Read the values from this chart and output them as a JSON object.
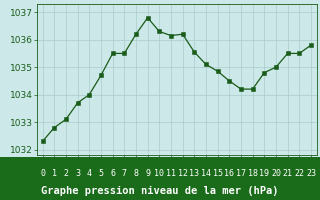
{
  "x": [
    0,
    1,
    2,
    3,
    4,
    5,
    6,
    7,
    8,
    9,
    10,
    11,
    12,
    13,
    14,
    15,
    16,
    17,
    18,
    19,
    20,
    21,
    22,
    23
  ],
  "y": [
    1032.3,
    1032.8,
    1033.1,
    1033.7,
    1034.0,
    1034.7,
    1035.5,
    1035.5,
    1036.2,
    1036.8,
    1036.3,
    1036.15,
    1036.2,
    1035.55,
    1035.1,
    1034.85,
    1034.5,
    1034.2,
    1034.2,
    1034.8,
    1035.0,
    1035.5,
    1035.5,
    1035.8
  ],
  "line_color": "#1a5c1a",
  "marker": "s",
  "marker_size": 2.5,
  "bg_color": "#cce8e8",
  "grid_color": "#aacccc",
  "xlim": [
    -0.5,
    23.5
  ],
  "ylim": [
    1031.8,
    1037.3
  ],
  "yticks": [
    1032,
    1033,
    1034,
    1035,
    1036,
    1037
  ],
  "xtick_labels": [
    "0",
    "1",
    "2",
    "3",
    "4",
    "5",
    "6",
    "7",
    "8",
    "9",
    "10",
    "11",
    "12",
    "13",
    "14",
    "15",
    "16",
    "17",
    "18",
    "19",
    "20",
    "21",
    "22",
    "23"
  ],
  "xlabel": "Graphe pression niveau de la mer (hPa)",
  "xlabel_fontsize": 7.5,
  "tick_fontsize": 6,
  "ytick_fontsize": 6.5,
  "spine_color": "#1a5c1a",
  "bottom_bar_color": "#1a6b1a",
  "xtick_color": "#1a5c1a",
  "ytick_color": "#1a5c1a"
}
